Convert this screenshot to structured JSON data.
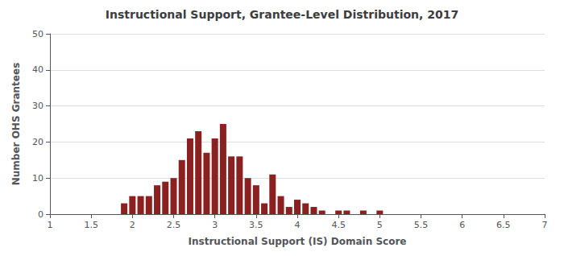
{
  "chart_data": {
    "type": "bar",
    "title": "Instructional Support, Grantee-Level Distribution, 2017",
    "xlabel": "Instructional Support (IS) Domain Score",
    "ylabel": "Number OHS Grantees",
    "x": [
      1.9,
      2.0,
      2.1,
      2.2,
      2.3,
      2.4,
      2.5,
      2.6,
      2.7,
      2.8,
      2.9,
      3.0,
      3.1,
      3.2,
      3.3,
      3.4,
      3.5,
      3.6,
      3.7,
      3.8,
      3.9,
      4.0,
      4.1,
      4.2,
      4.3,
      4.5,
      4.6,
      4.8,
      5.0
    ],
    "values": [
      3,
      5,
      5,
      5,
      8,
      9,
      10,
      15,
      21,
      23,
      17,
      21,
      25,
      16,
      16,
      10,
      8,
      3,
      11,
      5,
      2,
      4,
      3,
      2,
      1,
      1,
      1,
      1,
      1
    ],
    "color": "#8B2020",
    "xlim": [
      1,
      7
    ],
    "xticks": [
      1,
      1.5,
      2,
      2.5,
      3,
      3.5,
      4,
      4.5,
      5,
      5.5,
      6,
      6.5,
      7
    ],
    "ylim": [
      0,
      50
    ],
    "yticks": [
      0,
      10,
      20,
      30,
      40,
      50
    ],
    "grid": true
  }
}
